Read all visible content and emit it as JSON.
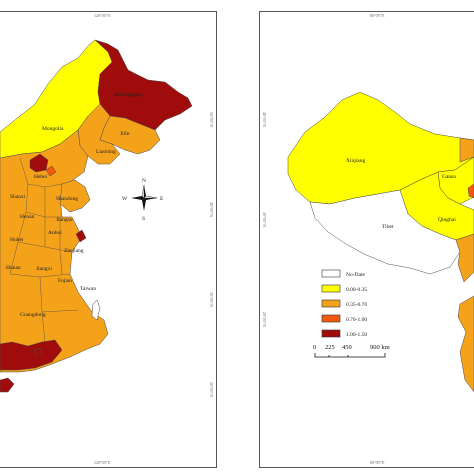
{
  "left_panel": {
    "coord_top": "120°0'0\"E",
    "coord_bottom": "120°0'0\"E",
    "coord_right_1": "50°0'0\"N",
    "coord_right_2": "40°0'0\"N",
    "coord_right_3": "30°0'0\"N",
    "coord_right_4": "20°0'0\"N",
    "labels": {
      "mongolia": "Mongolia",
      "heilongjiang": "Heilongjiang",
      "jilin": "Jilin",
      "liaoning": "Liaoning",
      "hebei": "Hebei",
      "shanxi": "Shanxi",
      "shandong": "Shandong",
      "henan": "Henan",
      "jiangsu": "Jiangsu",
      "anhui": "Anhui",
      "hubei": "Hubei",
      "zhejiang": "Zhejiang",
      "hunan": "Hunan",
      "jiangxi": "Jiangxi",
      "fujian": "Fujian",
      "taiwan": "Taiwan",
      "guangdong": "Guangdong"
    },
    "compass": {
      "n": "N",
      "s": "S",
      "e": "E",
      "w": "W"
    }
  },
  "right_panel": {
    "coord_top": "80°0'0\"E",
    "coord_bottom": "80°0'0\"E",
    "coord_left_1": "40°0'0\"N",
    "coord_left_2": "30°0'0\"N",
    "coord_left_3": "20°0'0\"N",
    "labels": {
      "xinjiang": "Xinjiang",
      "gansu": "Gansu",
      "qinghai": "Qinghai",
      "tibet": "Tibet"
    }
  },
  "legend": [
    {
      "label": "No-Date",
      "color": "#ffffff"
    },
    {
      "label": "0.00-0.35",
      "color": "#ffff00"
    },
    {
      "label": "0.35-0.70",
      "color": "#f5a21b"
    },
    {
      "label": "0.70-1.00",
      "color": "#ef5a0c"
    },
    {
      "label": "1.00-1.50",
      "color": "#a00c0c"
    }
  ],
  "scale_bar": {
    "ticks": [
      "0",
      "225",
      "450",
      "900 km"
    ]
  },
  "colors": {
    "yellow": "#ffff00",
    "orange": "#f5a21b",
    "dark_orange": "#ef5a0c",
    "dark_red": "#a00c0c",
    "border": "#4a4a4a"
  }
}
